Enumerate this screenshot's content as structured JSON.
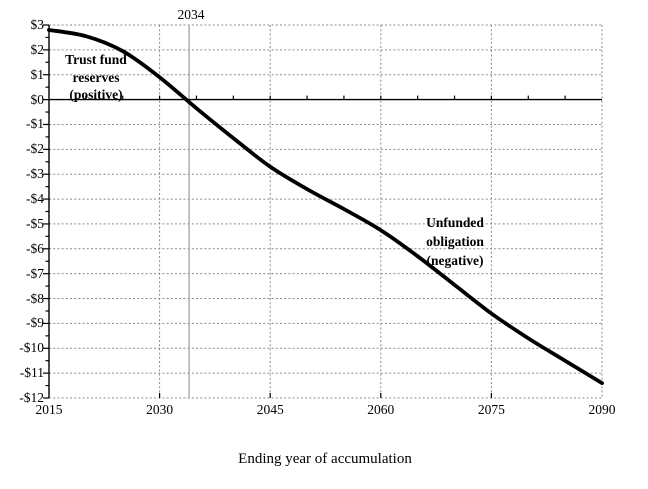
{
  "chart_data": {
    "type": "line",
    "title": "",
    "xlabel": "Ending year of accumulation",
    "ylabel": "",
    "x": [
      2015,
      2020,
      2025,
      2030,
      2035,
      2040,
      2045,
      2050,
      2055,
      2060,
      2065,
      2070,
      2075,
      2080,
      2085,
      2090
    ],
    "values": [
      2.8,
      2.55,
      1.95,
      0.9,
      -0.35,
      -1.55,
      -2.7,
      -3.6,
      -4.4,
      -5.25,
      -6.3,
      -7.45,
      -8.6,
      -9.6,
      -10.5,
      -11.4
    ],
    "xlim": [
      2015,
      2090
    ],
    "ylim": [
      -12,
      3
    ],
    "xticks": [
      2015,
      2030,
      2045,
      2060,
      2075,
      2090
    ],
    "xtick_labels": [
      "2015",
      "2030",
      "2045",
      "2060",
      "2075",
      "2090"
    ],
    "yticks": [
      3,
      2,
      1,
      0,
      -1,
      -2,
      -3,
      -4,
      -5,
      -6,
      -7,
      -8,
      -9,
      -10,
      -11,
      -12
    ],
    "ytick_labels": [
      "$3",
      "$2",
      "$1",
      "$0",
      "-$1",
      "-$2",
      "-$3",
      "-$4",
      "-$5",
      "-$6",
      "-$7",
      "-$8",
      "-$9",
      "-$10",
      "-$11",
      "-$12"
    ],
    "grid": true,
    "legend_position": "none",
    "line_color": "#000000",
    "grid_color": "#8a8a8a",
    "reference_line": {
      "year": 2034,
      "label": "2034"
    },
    "annotations": {
      "positive_region": "Trust fund\nreserves\n(positive)",
      "negative_region": "Unfunded\nobligation\n(negative)"
    }
  }
}
